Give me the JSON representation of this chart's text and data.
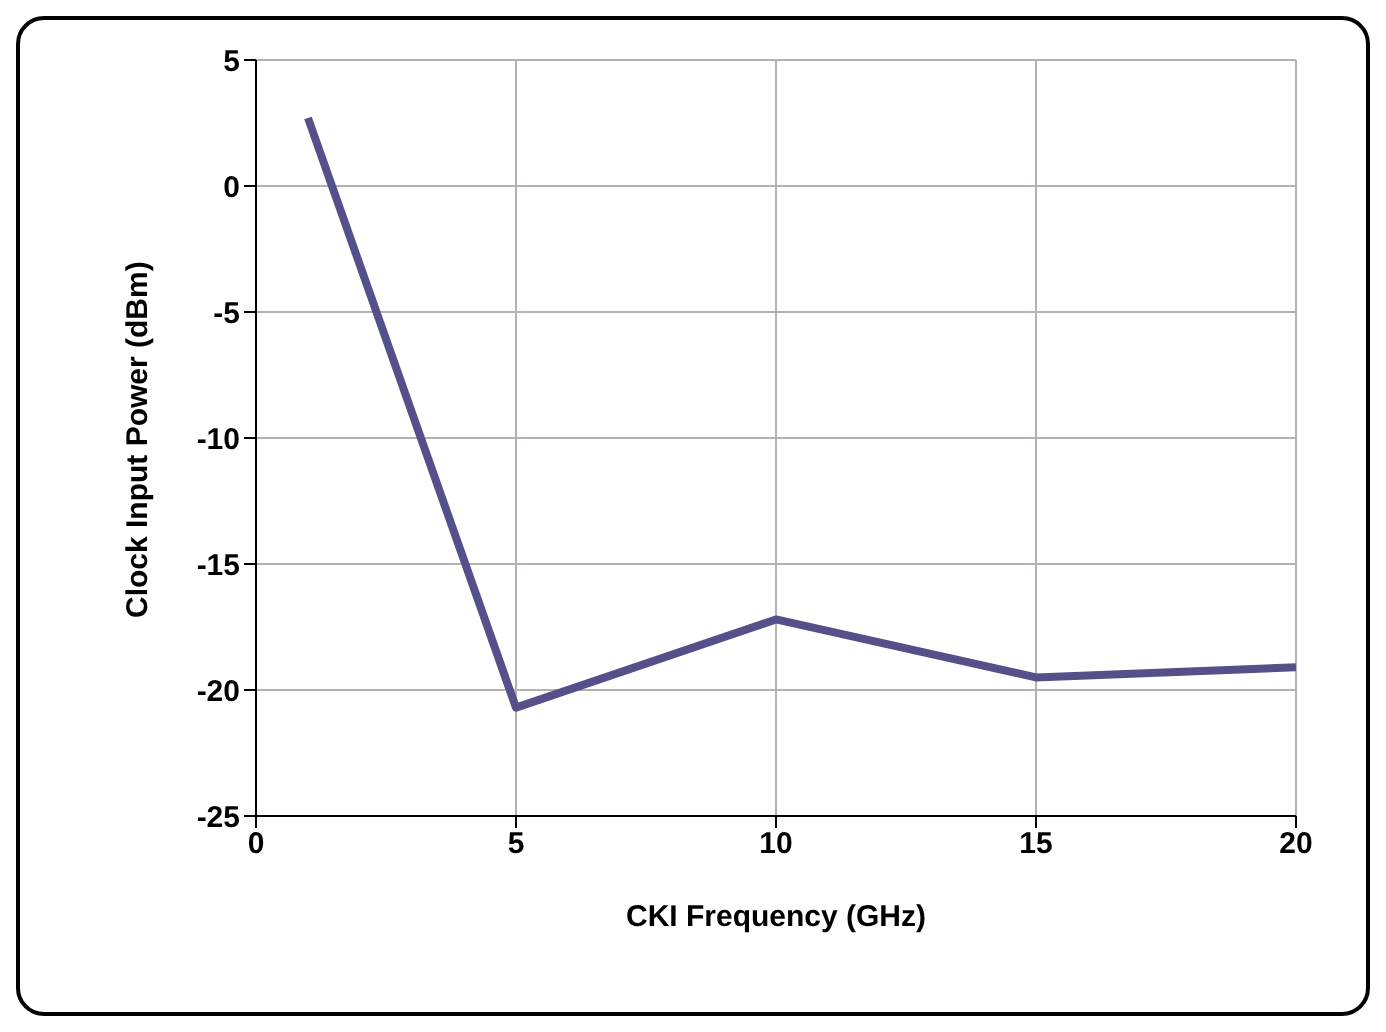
{
  "chart_data": {
    "type": "line",
    "xlabel": "CKI Frequency (GHz)",
    "ylabel": "Clock Input Power (dBm)",
    "x": [
      1,
      5,
      10,
      15,
      20
    ],
    "series": [
      {
        "color": "#55508a",
        "values": [
          2.7,
          -20.7,
          -17.2,
          -19.5,
          -19.1
        ]
      }
    ],
    "xlim": [
      0,
      20
    ],
    "xticks": [
      0,
      5,
      10,
      15,
      20
    ],
    "ylim": [
      -25,
      5
    ],
    "yticks": [
      -25,
      -20,
      -15,
      -10,
      -5,
      0,
      5
    ],
    "grid": true,
    "legend": false,
    "marker": "none",
    "line_style": "solid"
  }
}
